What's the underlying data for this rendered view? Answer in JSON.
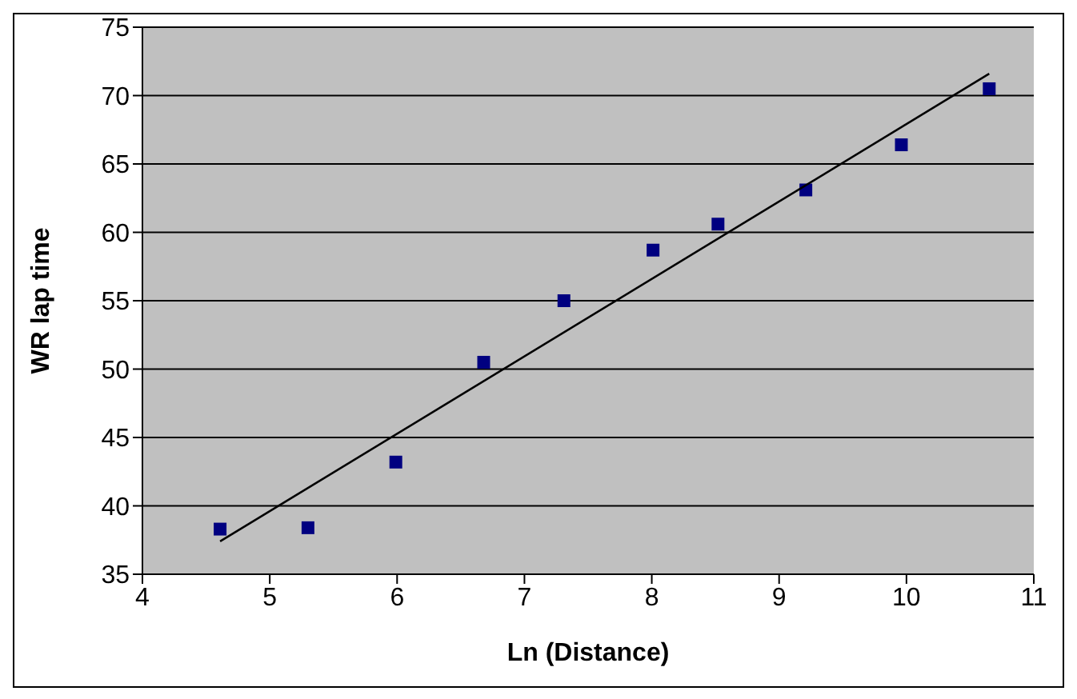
{
  "chart_data": {
    "type": "scatter",
    "xlabel": "Ln (Distance)",
    "ylabel": "WR lap time",
    "xlim": [
      4,
      11
    ],
    "xticks": [
      4,
      5,
      6,
      7,
      8,
      9,
      10,
      11
    ],
    "ylim": [
      35,
      75
    ],
    "yticks": [
      35,
      40,
      45,
      50,
      55,
      60,
      65,
      70,
      75
    ],
    "grid": "y",
    "legend": false,
    "series": [
      {
        "color": "#000080",
        "marker": "square",
        "x": [
          4.61,
          5.3,
          5.99,
          6.68,
          7.31,
          8.01,
          8.52,
          9.21,
          9.96,
          10.65
        ],
        "values": [
          38.3,
          38.4,
          43.2,
          50.5,
          55.0,
          58.7,
          60.6,
          63.1,
          66.4,
          70.5
        ]
      },
      {
        "type": "line",
        "color": "#000000",
        "marker": "none",
        "line_style": "solid",
        "x": [
          4.61,
          10.65
        ],
        "values": [
          37.4,
          71.6
        ]
      }
    ]
  }
}
